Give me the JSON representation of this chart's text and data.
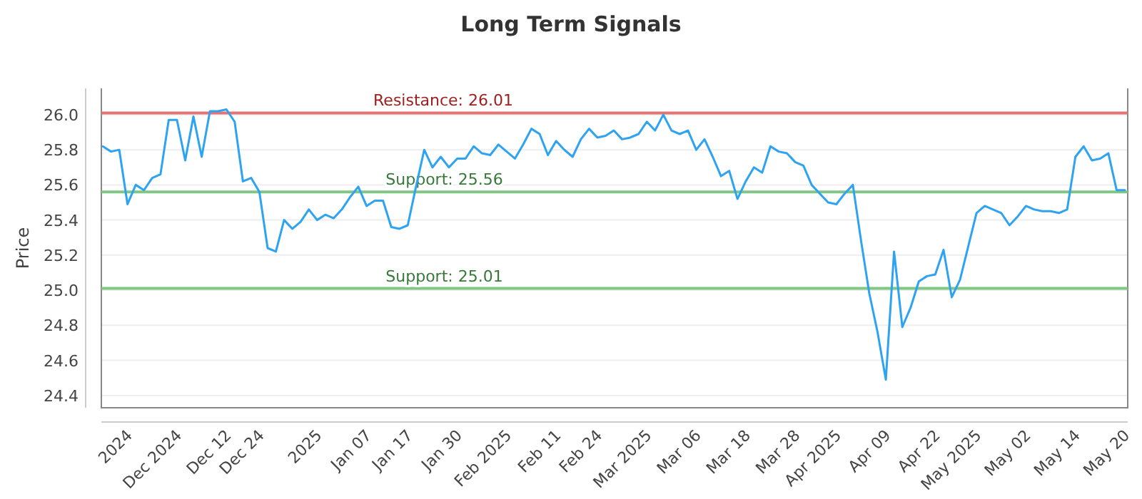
{
  "chart_data": {
    "type": "line",
    "title": "Long Term Signals",
    "ylabel": "Price",
    "categories": [
      null,
      null,
      null,
      "2024",
      null,
      null,
      null,
      null,
      null,
      "Dec 2024",
      null,
      null,
      null,
      null,
      null,
      "Dec 12",
      null,
      null,
      null,
      "Dec 24",
      null,
      null,
      null,
      null,
      null,
      null,
      "2025",
      null,
      null,
      null,
      null,
      null,
      "Jan 07",
      null,
      null,
      null,
      null,
      "Jan 17",
      null,
      null,
      null,
      null,
      null,
      "Jan 30",
      null,
      null,
      null,
      null,
      null,
      "Feb 2025",
      null,
      null,
      null,
      null,
      null,
      "Feb 11",
      null,
      null,
      null,
      null,
      "Feb 24",
      null,
      null,
      null,
      null,
      null,
      "Mar 2025",
      null,
      null,
      null,
      null,
      null,
      "Mar 06",
      null,
      null,
      null,
      null,
      null,
      "Mar 18",
      null,
      null,
      null,
      null,
      null,
      "Mar 28",
      null,
      null,
      null,
      null,
      "Apr 2025",
      null,
      null,
      null,
      null,
      null,
      "Apr 09",
      null,
      null,
      null,
      null,
      null,
      "Apr 22",
      null,
      null,
      null,
      null,
      "May 2025",
      null,
      null,
      null,
      null,
      null,
      "May 02",
      null,
      null,
      null,
      null,
      null,
      "May 14",
      null,
      null,
      null,
      null,
      null,
      "May 20"
    ],
    "series": [
      {
        "color": "#2ea3f2",
        "values": [
          25.82,
          25.79,
          25.8,
          25.49,
          25.6,
          25.57,
          25.64,
          25.66,
          25.97,
          25.97,
          25.74,
          25.99,
          25.76,
          26.02,
          26.02,
          26.03,
          25.96,
          25.62,
          25.64,
          25.56,
          25.24,
          25.22,
          25.4,
          25.35,
          25.39,
          25.46,
          25.4,
          25.43,
          25.41,
          25.46,
          25.53,
          25.59,
          25.48,
          25.51,
          25.51,
          25.36,
          25.35,
          25.37,
          25.59,
          25.8,
          25.7,
          25.76,
          25.7,
          25.75,
          25.75,
          25.82,
          25.78,
          25.77,
          25.83,
          25.79,
          25.75,
          25.83,
          25.92,
          25.89,
          25.77,
          25.85,
          25.8,
          25.76,
          25.86,
          25.92,
          25.87,
          25.88,
          25.91,
          25.86,
          25.87,
          25.89,
          25.96,
          25.91,
          26.0,
          25.91,
          25.89,
          25.91,
          25.8,
          25.86,
          25.76,
          25.65,
          25.68,
          25.52,
          25.62,
          25.7,
          25.67,
          25.82,
          25.79,
          25.78,
          25.73,
          25.71,
          25.6,
          25.55,
          25.5,
          25.49,
          25.55,
          25.6,
          25.28,
          24.98,
          24.76,
          24.49,
          25.22,
          24.79,
          24.9,
          25.05,
          25.08,
          25.09,
          25.23,
          24.96,
          25.06,
          25.25,
          25.44,
          25.48,
          25.46,
          25.44,
          25.37,
          25.42,
          25.48,
          25.46,
          25.45,
          25.45,
          25.44,
          25.46,
          25.76,
          25.82,
          25.74,
          25.75,
          25.78,
          25.57,
          25.57
        ]
      }
    ],
    "ylim": [
      24.33,
      26.15
    ],
    "yticks": [
      {
        "value": 24.4,
        "label": "24.4"
      },
      {
        "value": 24.6,
        "label": "24.6"
      },
      {
        "value": 24.8,
        "label": "24.8"
      },
      {
        "value": 25.0,
        "label": "25.0"
      },
      {
        "value": 25.2,
        "label": "25.2"
      },
      {
        "value": 25.4,
        "label": "25.4"
      },
      {
        "value": 25.6,
        "label": "25.6"
      },
      {
        "value": 25.8,
        "label": "25.8"
      },
      {
        "value": 26.0,
        "label": "26.0"
      }
    ],
    "grid": "y",
    "marker": "none",
    "line_style": "solid",
    "ref_lines": [
      {
        "axis": "y",
        "value": 26.01,
        "label": "Resistance: 26.01",
        "color": "#e57373"
      },
      {
        "axis": "y",
        "value": 25.56,
        "label": "Support: 25.56",
        "color": "#81c784"
      },
      {
        "axis": "y",
        "value": 25.01,
        "label": "Support: 25.01",
        "color": "#81c784"
      }
    ]
  }
}
